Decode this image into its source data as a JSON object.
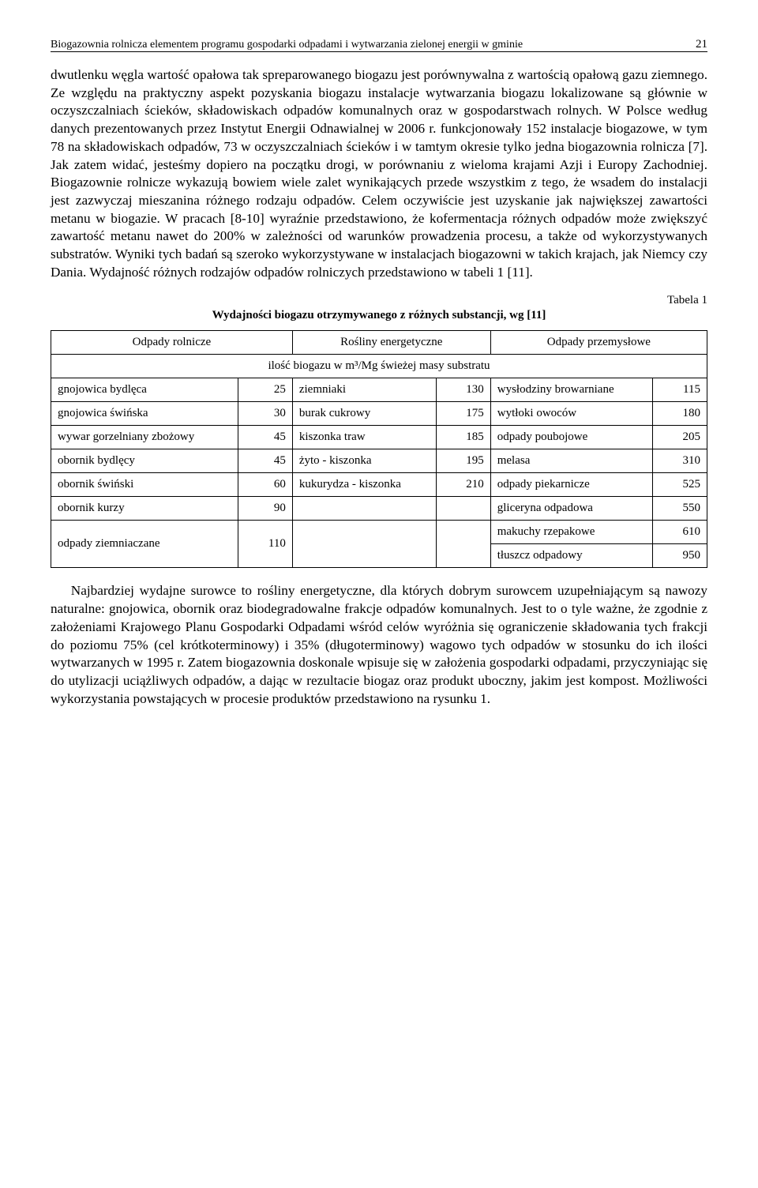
{
  "header": {
    "running_title": "Biogazownia rolnicza elementem programu gospodarki odpadami i wytwarzania zielonej energii w gminie",
    "page_number": "21"
  },
  "paragraph1": "dwutlenku węgla wartość opałowa tak spreparowanego biogazu jest porównywalna z wartością opałową gazu ziemnego. Ze względu na praktyczny aspekt pozyskania biogazu instalacje wytwarzania biogazu lokalizowane są głównie w oczyszczalniach ścieków, składowiskach odpadów komunalnych oraz w gospodarstwach rolnych. W Polsce według danych prezentowanych przez Instytut Energii Odnawialnej w 2006 r. funkcjonowały 152 instalacje biogazowe, w tym 78 na składowiskach odpadów, 73 w oczyszczalniach ścieków i w tamtym okresie tylko jedna biogazownia rolnicza [7]. Jak zatem widać, jesteśmy dopiero na początku drogi, w porównaniu z wieloma krajami Azji i Europy Zachodniej. Biogazownie rolnicze wykazują bowiem wiele zalet wynikających przede wszystkim z tego, że wsadem do instalacji jest zazwyczaj mieszanina różnego rodzaju odpadów. Celem oczywiście jest uzyskanie jak największej zawartości metanu w biogazie. W pracach [8-10] wyraźnie przedstawiono, że kofermentacja różnych odpadów może zwiększyć zawartość metanu nawet do 200% w zależności od warunków prowadzenia procesu, a także od wykorzystywanych substratów. Wyniki tych badań są szeroko wykorzystywane w instalacjach biogazowni w takich krajach, jak Niemcy czy Dania. Wydajność różnych rodzajów odpadów rolniczych przedstawiono w tabeli 1 [11].",
  "table": {
    "caption_right": "Tabela 1",
    "caption_center": "Wydajności biogazu otrzymywanego z różnych substancji, wg [11]",
    "group_headers": [
      "Odpady rolnicze",
      "Rośliny energetyczne",
      "Odpady przemysłowe"
    ],
    "unit_row": "ilość biogazu w m³/Mg świeżej masy substratu",
    "rows": [
      {
        "c1": "gnojowica bydlęca",
        "v1": "25",
        "c2": "ziemniaki",
        "v2": "130",
        "c3": "wysłodziny browarniane",
        "v3": "115"
      },
      {
        "c1": "gnojowica świńska",
        "v1": "30",
        "c2": "burak cukrowy",
        "v2": "175",
        "c3": "wytłoki owoców",
        "v3": "180"
      },
      {
        "c1": "wywar gorzelniany zbożowy",
        "v1": "45",
        "c2": "kiszonka traw",
        "v2": "185",
        "c3": "odpady poubojowe",
        "v3": "205"
      },
      {
        "c1": "obornik bydlęcy",
        "v1": "45",
        "c2": "żyto - kiszonka",
        "v2": "195",
        "c3": "melasa",
        "v3": "310"
      },
      {
        "c1": "obornik świński",
        "v1": "60",
        "c2": "kukurydza - kiszonka",
        "v2": "210",
        "c3": "odpady piekarnicze",
        "v3": "525"
      },
      {
        "c1": "obornik kurzy",
        "v1": "90",
        "c2": "",
        "v2": "",
        "c3": "gliceryna odpadowa",
        "v3": "550"
      }
    ],
    "last_left_label": "odpady ziemniaczane",
    "last_left_value": "110",
    "last_right_a_label": "makuchy rzepakowe",
    "last_right_a_value": "610",
    "last_right_b_label": "tłuszcz odpadowy",
    "last_right_b_value": "950"
  },
  "paragraph2": "Najbardziej wydajne surowce to rośliny energetyczne, dla których dobrym surowcem uzupełniającym są nawozy naturalne: gnojowica, obornik oraz biodegradowalne frakcje odpadów komunalnych. Jest to o tyle ważne, że zgodnie z założeniami Krajowego Planu Gospodarki Odpadami wśród celów wyróżnia się ograniczenie składowania tych frakcji do poziomu 75% (cel krótkoterminowy) i 35% (długoterminowy) wagowo tych odpadów w stosunku do ich ilości wytwarzanych w 1995 r. Zatem biogazownia doskonale wpisuje się w założenia gospodarki odpadami, przyczyniając się do utylizacji uciążliwych odpadów, a dając w rezultacie biogaz oraz produkt uboczny, jakim jest kompost. Możliwości wykorzystania powstających w procesie produktów przedstawiono na rysunku 1."
}
